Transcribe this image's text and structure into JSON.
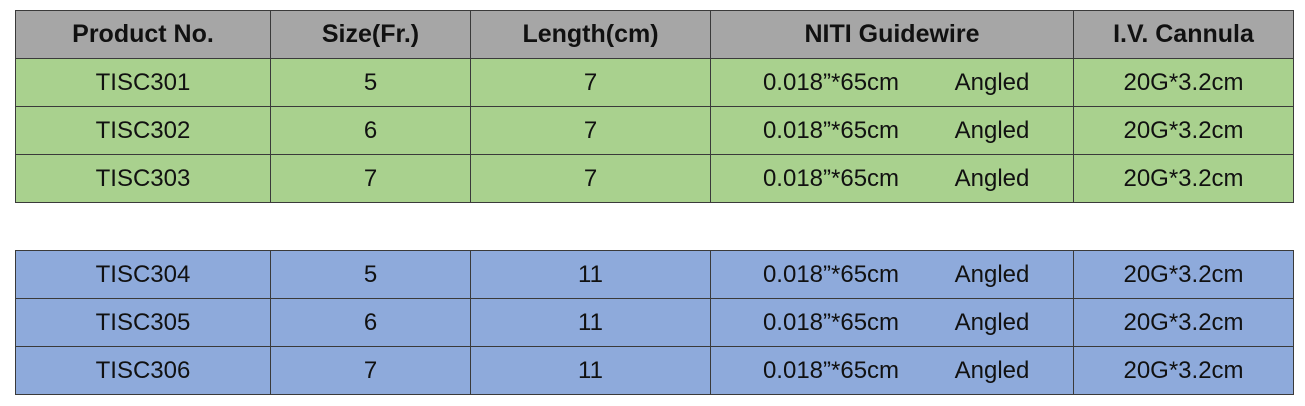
{
  "table": {
    "header": [
      "Product No.",
      "Size(Fr.)",
      "Length(cm)",
      "NITI Guidewire",
      "I.V. Cannula"
    ],
    "groups": [
      {
        "rows": [
          [
            "TISC301",
            5,
            7,
            "0.018”*65cm",
            "Angled",
            "20G*3.2cm"
          ],
          [
            "TISC302",
            6,
            7,
            "0.018”*65cm",
            "Angled",
            "20G*3.2cm"
          ],
          [
            "TISC303",
            7,
            7,
            "0.018”*65cm",
            "Angled",
            "20G*3.2cm"
          ]
        ]
      },
      {
        "rows": [
          [
            "TISC304",
            5,
            11,
            "0.018”*65cm",
            "Angled",
            "20G*3.2cm"
          ],
          [
            "TISC305",
            6,
            11,
            "0.018”*65cm",
            "Angled",
            "20G*3.2cm"
          ],
          [
            "TISC306",
            7,
            11,
            "0.018”*65cm",
            "Angled",
            "20G*3.2cm"
          ]
        ]
      }
    ]
  }
}
